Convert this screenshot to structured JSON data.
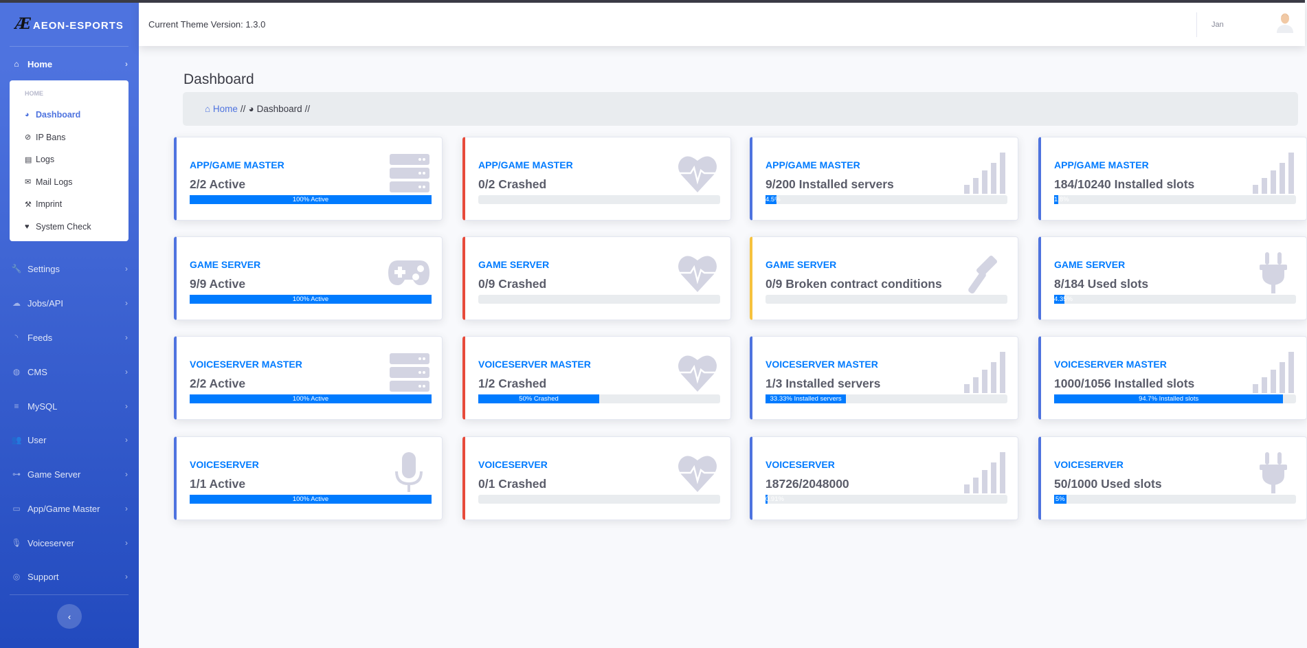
{
  "brand": {
    "logo": "Æ",
    "name": "AEON-ESPORTS"
  },
  "colors": {
    "primary": "#4e73df",
    "danger": "#e74a3b",
    "warning": "#f6c23e",
    "progress": "#007bff",
    "icon": "#d3d4e2"
  },
  "sidebar": {
    "home": {
      "label": "Home",
      "icon": "home-icon"
    },
    "submenu": {
      "header": "HOME",
      "items": [
        {
          "label": "Dashboard",
          "icon": "tachometer-icon",
          "glyph": "◕",
          "active": true
        },
        {
          "label": "IP Bans",
          "icon": "ban-icon",
          "glyph": "⊘"
        },
        {
          "label": "Logs",
          "icon": "list-icon",
          "glyph": "▤"
        },
        {
          "label": "Mail Logs",
          "icon": "envelope-icon",
          "glyph": "✉"
        },
        {
          "label": "Imprint",
          "icon": "gavel-icon",
          "glyph": "⚒"
        },
        {
          "label": "System Check",
          "icon": "heartbeat-icon",
          "glyph": "♥"
        }
      ]
    },
    "items": [
      {
        "label": "Settings",
        "icon": "wrench-icon",
        "glyph": "🔧"
      },
      {
        "label": "Jobs/API",
        "icon": "cloud-icon",
        "glyph": "☁"
      },
      {
        "label": "Feeds",
        "icon": "rss-icon",
        "glyph": "◝"
      },
      {
        "label": "CMS",
        "icon": "globe-icon",
        "glyph": "◍"
      },
      {
        "label": "MySQL",
        "icon": "database-icon",
        "glyph": "≡"
      },
      {
        "label": "User",
        "icon": "users-icon",
        "glyph": "👥"
      },
      {
        "label": "Game Server",
        "icon": "gamepad-icon",
        "glyph": "⊶"
      },
      {
        "label": "App/Game Master",
        "icon": "hdd-icon",
        "glyph": "▭"
      },
      {
        "label": "Voiceserver",
        "icon": "microphone-icon",
        "glyph": "🎙"
      },
      {
        "label": "Support",
        "icon": "life-ring-icon",
        "glyph": "◎"
      }
    ],
    "toggle": "‹"
  },
  "topbar": {
    "version": "Current Theme Version: 1.3.0",
    "user": "Jan"
  },
  "page": {
    "title": "Dashboard",
    "breadcrumb": {
      "home": "Home",
      "sep": "//",
      "current": "Dashboard"
    }
  },
  "cards": [
    {
      "title": "APP/GAME MASTER",
      "value": "2/2 Active",
      "percent": 100,
      "bar_label": "100% Active",
      "border": "primary",
      "icon": "server"
    },
    {
      "title": "APP/GAME MASTER",
      "value": "0/2 Crashed",
      "percent": 0,
      "bar_label": "",
      "border": "danger",
      "icon": "heartbeat"
    },
    {
      "title": "APP/GAME MASTER",
      "value": "9/200 Installed servers",
      "percent": 4.5,
      "bar_label": "4.5%",
      "border": "primary",
      "icon": "signal"
    },
    {
      "title": "APP/GAME MASTER",
      "value": "184/10240 Installed slots",
      "percent": 1.8,
      "bar_label": "1.8%",
      "border": "primary",
      "icon": "signal"
    },
    {
      "title": "GAME SERVER",
      "value": "9/9 Active",
      "percent": 100,
      "bar_label": "100% Active",
      "border": "primary",
      "icon": "gamepad"
    },
    {
      "title": "GAME SERVER",
      "value": "0/9 Crashed",
      "percent": 0,
      "bar_label": "",
      "border": "danger",
      "icon": "heartbeat"
    },
    {
      "title": "GAME SERVER",
      "value": "0/9 Broken contract conditions",
      "percent": 0,
      "bar_label": "",
      "border": "warning",
      "icon": "gavel"
    },
    {
      "title": "GAME SERVER",
      "value": "8/184 Used slots",
      "percent": 4.35,
      "bar_label": "4.35%",
      "border": "primary",
      "icon": "plug"
    },
    {
      "title": "VOICESERVER MASTER",
      "value": "2/2 Active",
      "percent": 100,
      "bar_label": "100% Active",
      "border": "primary",
      "icon": "server"
    },
    {
      "title": "VOICESERVER MASTER",
      "value": "1/2 Crashed",
      "percent": 50,
      "bar_label": "50% Crashed",
      "border": "danger",
      "icon": "heartbeat"
    },
    {
      "title": "VOICESERVER MASTER",
      "value": "1/3 Installed servers",
      "percent": 33.33,
      "bar_label": "33.33% Installed servers",
      "border": "primary",
      "icon": "signal"
    },
    {
      "title": "VOICESERVER MASTER",
      "value": "1000/1056 Installed slots",
      "percent": 94.7,
      "bar_label": "94.7% Installed slots",
      "border": "primary",
      "icon": "signal"
    },
    {
      "title": "VOICESERVER",
      "value": "1/1 Active",
      "percent": 100,
      "bar_label": "100% Active",
      "border": "primary",
      "icon": "microphone"
    },
    {
      "title": "VOICESERVER",
      "value": "0/1 Crashed",
      "percent": 0,
      "bar_label": "",
      "border": "danger",
      "icon": "heartbeat"
    },
    {
      "title": "VOICESERVER",
      "value": "18726/2048000",
      "percent": 0.91,
      "bar_label": "0.91%",
      "border": "primary",
      "icon": "signal"
    },
    {
      "title": "VOICESERVER",
      "value": "50/1000 Used slots",
      "percent": 5,
      "bar_label": "5%",
      "border": "primary",
      "icon": "plug"
    }
  ]
}
